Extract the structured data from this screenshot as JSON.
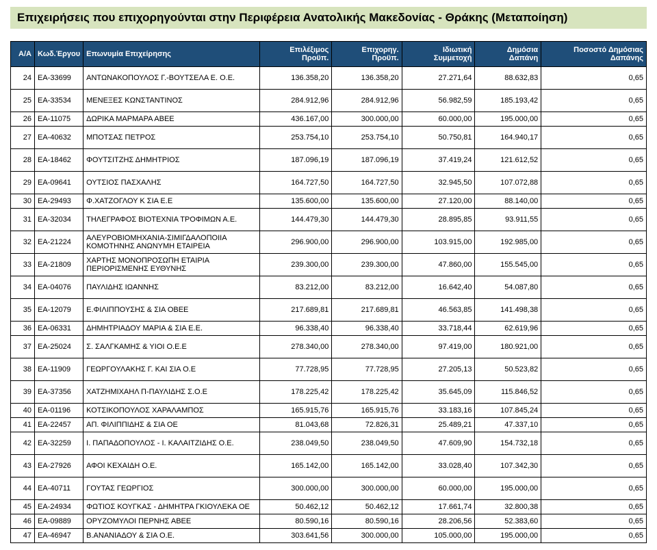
{
  "title": "Επιχειρήσεις που επιχορηγούνται στην Περιφέρεια Ανατολικής Μακεδονίας - Θράκης (Μεταποίηση)",
  "headers": {
    "aa": "Α/Α",
    "kwd": "Κωδ.Έργου",
    "name": "Επωνυμία Επιχείρησης",
    "budget_elig": "Επιλέξιμος Προϋπ.",
    "budget_grant": "Επιχορηγ. Προϋπ.",
    "private": "Ιδιωτική Συμμετοχή",
    "public": "Δημόσια Δαπάνη",
    "percent": "Ποσοστό Δημόσιας Δαπάνης"
  },
  "rows": [
    {
      "aa": "24",
      "kwd": "ΕΑ-33699",
      "name": "ΑΝΤΩΝΑΚΟΠΟΥΛΟΣ Γ.-ΒΟΥΤΣΕΛΑ Ε. Ο.Ε.",
      "c1": "136.358,20",
      "c2": "136.358,20",
      "c3": "27.271,64",
      "c4": "88.632,83",
      "c5": "0,65",
      "spaced": true
    },
    {
      "aa": "25",
      "kwd": "ΕΑ-33534",
      "name": "ΜΕΝΕΞΕΣ ΚΩΝΣΤΑΝΤΙΝΟΣ",
      "c1": "284.912,96",
      "c2": "284.912,96",
      "c3": "56.982,59",
      "c4": "185.193,42",
      "c5": "0,65",
      "spaced": true
    },
    {
      "aa": "26",
      "kwd": "ΕΑ-11075",
      "name": "ΔΩΡΙΚΑ ΜΑΡΜΑΡΑ ΑΒΕΕ",
      "c1": "436.167,00",
      "c2": "300.000,00",
      "c3": "60.000,00",
      "c4": "195.000,00",
      "c5": "0,65"
    },
    {
      "aa": "27",
      "kwd": "ΕΑ-40632",
      "name": "ΜΠΟΤΣΑΣ ΠΕΤΡΟΣ",
      "c1": "253.754,10",
      "c2": "253.754,10",
      "c3": "50.750,81",
      "c4": "164.940,17",
      "c5": "0,65",
      "spaced": true
    },
    {
      "aa": "28",
      "kwd": "ΕΑ-18462",
      "name": "ΦΟΥΤΣΙΤΖΗΣ ΔΗΜΗΤΡΙΟΣ",
      "c1": "187.096,19",
      "c2": "187.096,19",
      "c3": "37.419,24",
      "c4": "121.612,52",
      "c5": "0,65",
      "spaced": true
    },
    {
      "aa": "29",
      "kwd": "ΕΑ-09641",
      "name": "ΟΥΤΣΙΟΣ ΠΑΣΧΑΛΗΣ",
      "c1": "164.727,50",
      "c2": "164.727,50",
      "c3": "32.945,50",
      "c4": "107.072,88",
      "c5": "0,65",
      "spaced": true
    },
    {
      "aa": "30",
      "kwd": "ΕΑ-29493",
      "name": "Φ.ΧΑΤΖΟΓΛΟΥ Κ ΣΙΑ Ε.Ε",
      "c1": "135.600,00",
      "c2": "135.600,00",
      "c3": "27.120,00",
      "c4": "88.140,00",
      "c5": "0,65"
    },
    {
      "aa": "31",
      "kwd": "ΕΑ-32034",
      "name": "ΤΗΛΕΓΡΑΦΟΣ ΒΙΟΤΕΧΝΙΑ ΤΡΟΦΙΜΩΝ Α.Ε.",
      "c1": "144.479,30",
      "c2": "144.479,30",
      "c3": "28.895,85",
      "c4": "93.911,55",
      "c5": "0,65",
      "spaced": true
    },
    {
      "aa": "32",
      "kwd": "ΕΑ-21224",
      "name": "ΑΛΕΥΡΟΒΙΟΜΗΧΑΝΙΑ-ΣΙΜΙΓΔΑΛΟΠΟΙΙΑ ΚΟΜΟΤΗΝΗΣ ΑΝΩΝΥΜΗ ΕΤΑΙΡΕΙΑ",
      "c1": "296.900,00",
      "c2": "296.900,00",
      "c3": "103.915,00",
      "c4": "192.985,00",
      "c5": "0,65"
    },
    {
      "aa": "33",
      "kwd": "ΕΑ-21809",
      "name": "ΧΑΡΤΗΣ ΜΟΝΟΠΡΟΣΩΠΗ ΕΤΑΙΡΙΑ ΠΕΡΙΟΡΙΣΜΕΝΗΣ ΕΥΘΥΝΗΣ",
      "c1": "239.300,00",
      "c2": "239.300,00",
      "c3": "47.860,00",
      "c4": "155.545,00",
      "c5": "0,65"
    },
    {
      "aa": "34",
      "kwd": "ΕΑ-04076",
      "name": "ΠΑΥΛΙΔΗΣ ΙΩΑΝΝΗΣ",
      "c1": "83.212,00",
      "c2": "83.212,00",
      "c3": "16.642,40",
      "c4": "54.087,80",
      "c5": "0,65",
      "spaced": true
    },
    {
      "aa": "35",
      "kwd": "ΕΑ-12079",
      "name": "Ε.ΦΙΛΙΠΠΟΥΣΗΣ & ΣΙΑ ΟΒΕΕ",
      "c1": "217.689,81",
      "c2": "217.689,81",
      "c3": "46.563,85",
      "c4": "141.498,38",
      "c5": "0,65",
      "spaced": true
    },
    {
      "aa": "36",
      "kwd": "ΕΑ-06331",
      "name": "ΔΗΜΗΤΡΙΑΔΟΥ ΜΑΡΙΑ & ΣΙΑ Ε.Ε.",
      "c1": "96.338,40",
      "c2": "96.338,40",
      "c3": "33.718,44",
      "c4": "62.619,96",
      "c5": "0,65"
    },
    {
      "aa": "37",
      "kwd": "ΕΑ-25024",
      "name": "Σ. ΣΑΛΓΚΑΜΗΣ & ΥΙΟΙ Ο.Ε.Ε",
      "c1": "278.340,00",
      "c2": "278.340,00",
      "c3": "97.419,00",
      "c4": "180.921,00",
      "c5": "0,65",
      "spaced": true
    },
    {
      "aa": "38",
      "kwd": "ΕΑ-11909",
      "name": "ΓΕΩΡΓΟΥΛΑΚΗΣ Γ. ΚΑΙ ΣΙΑ Ο.Ε",
      "c1": "77.728,95",
      "c2": "77.728,95",
      "c3": "27.205,13",
      "c4": "50.523,82",
      "c5": "0,65",
      "spaced": true
    },
    {
      "aa": "39",
      "kwd": "ΕΑ-37356",
      "name": "ΧΑΤΖΗΜΙΧΑΗΛ Π-ΠΑΥΛΙΔΗΣ Σ.Ο.Ε",
      "c1": "178.225,42",
      "c2": "178.225,42",
      "c3": "35.645,09",
      "c4": "115.846,52",
      "c5": "0,65",
      "spaced": true
    },
    {
      "aa": "40",
      "kwd": "ΕΑ-01196",
      "name": "ΚΟΤΣΙΚΟΠΟΥΛΟΣ ΧΑΡΑΛΑΜΠΟΣ",
      "c1": "165.915,76",
      "c2": "165.915,76",
      "c3": "33.183,16",
      "c4": "107.845,24",
      "c5": "0,65"
    },
    {
      "aa": "41",
      "kwd": "ΕΑ-22457",
      "name": "ΑΠ. ΦΙΛΙΠΠΙΔΗΣ & ΣΙΑ ΟΕ",
      "c1": "81.043,68",
      "c2": "72.826,31",
      "c3": "25.489,21",
      "c4": "47.337,10",
      "c5": "0,65"
    },
    {
      "aa": "42",
      "kwd": "ΕΑ-32259",
      "name": "Ι. ΠΑΠΑΔΟΠΟΥΛΟΣ - Ι. ΚΑΛΑΙΤΖΙΔΗΣ Ο.Ε.",
      "c1": "238.049,50",
      "c2": "238.049,50",
      "c3": "47.609,90",
      "c4": "154.732,18",
      "c5": "0,65",
      "spaced": true
    },
    {
      "aa": "43",
      "kwd": "ΕΑ-27926",
      "name": "ΑΦΟΙ ΚΕΧΑΙΔΗ Ο.Ε.",
      "c1": "165.142,00",
      "c2": "165.142,00",
      "c3": "33.028,40",
      "c4": "107.342,30",
      "c5": "0,65",
      "spaced": true
    },
    {
      "aa": "44",
      "kwd": "ΕΑ-40711",
      "name": "ΓΟΥΤΑΣ ΓΕΩΡΓΙΟΣ",
      "c1": "300.000,00",
      "c2": "300.000,00",
      "c3": "60.000,00",
      "c4": "195.000,00",
      "c5": "0,65",
      "spaced": true
    },
    {
      "aa": "45",
      "kwd": "ΕΑ-24934",
      "name": "ΦΩΤΙΟΣ ΚΟΥΓΚΑΣ - ΔΗΜΗΤΡΑ ΓΚΙΟΥΛΕΚΑ ΟΕ",
      "c1": "50.462,12",
      "c2": "50.462,12",
      "c3": "17.661,74",
      "c4": "32.800,38",
      "c5": "0,65"
    },
    {
      "aa": "46",
      "kwd": "ΕΑ-09889",
      "name": "ΟΡΥΖΟΜΥΛΟΙ ΠΕΡΝΗΣ ΑΒΕΕ",
      "c1": "80.590,16",
      "c2": "80.590,16",
      "c3": "28.206,56",
      "c4": "52.383,60",
      "c5": "0,65"
    },
    {
      "aa": "47",
      "kwd": "ΕΑ-46947",
      "name": "Β.ΑΝΑΝΙΑΔΟΥ & ΣΙΑ Ο.Ε.",
      "c1": "303.641,56",
      "c2": "300.000,00",
      "c3": "105.000,00",
      "c4": "195.000,00",
      "c5": "0,65"
    }
  ],
  "colors": {
    "title_bg": "#d7e4be",
    "header_bg": "#1f4e79",
    "header_fg": "#ffffff",
    "border": "#000000"
  }
}
